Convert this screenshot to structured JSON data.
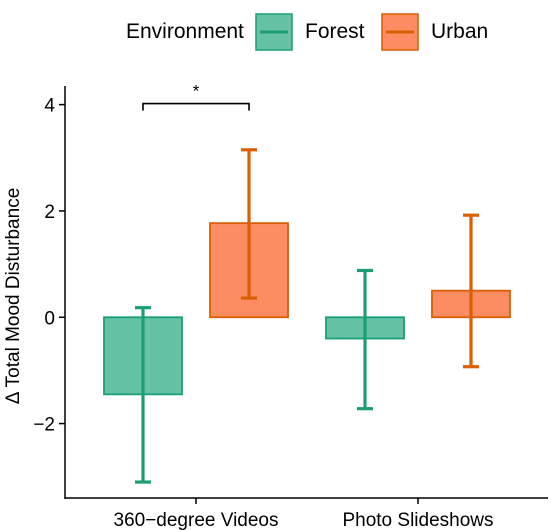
{
  "chart_data": {
    "type": "bar",
    "categories": [
      "360−degree Videos",
      "Photo Slideshows"
    ],
    "series": [
      {
        "name": "Forest",
        "values": [
          -1.45,
          -0.4
        ],
        "error_low": [
          -3.1,
          -1.72
        ],
        "error_high": [
          0.18,
          0.88
        ],
        "color": "#66c2a5",
        "stroke": "#1b9e77"
      },
      {
        "name": "Urban",
        "values": [
          1.77,
          0.5
        ],
        "error_low": [
          0.36,
          -0.93
        ],
        "error_high": [
          3.15,
          1.92
        ],
        "color": "#fc8d62",
        "stroke": "#d95f02"
      }
    ],
    "legend_title": "Environment",
    "legend_position": "top",
    "title": "",
    "xlabel": "",
    "ylabel": "Δ Total Mood Disturbance",
    "ylim": [
      -3.4,
      4.35
    ],
    "yticks": [
      -2,
      0,
      2,
      4
    ],
    "ytick_labels": [
      "−2",
      "0",
      "2",
      "4"
    ],
    "grid": false,
    "annotations": [
      {
        "text": "*",
        "category_index": 0,
        "y": 4.0
      }
    ]
  }
}
